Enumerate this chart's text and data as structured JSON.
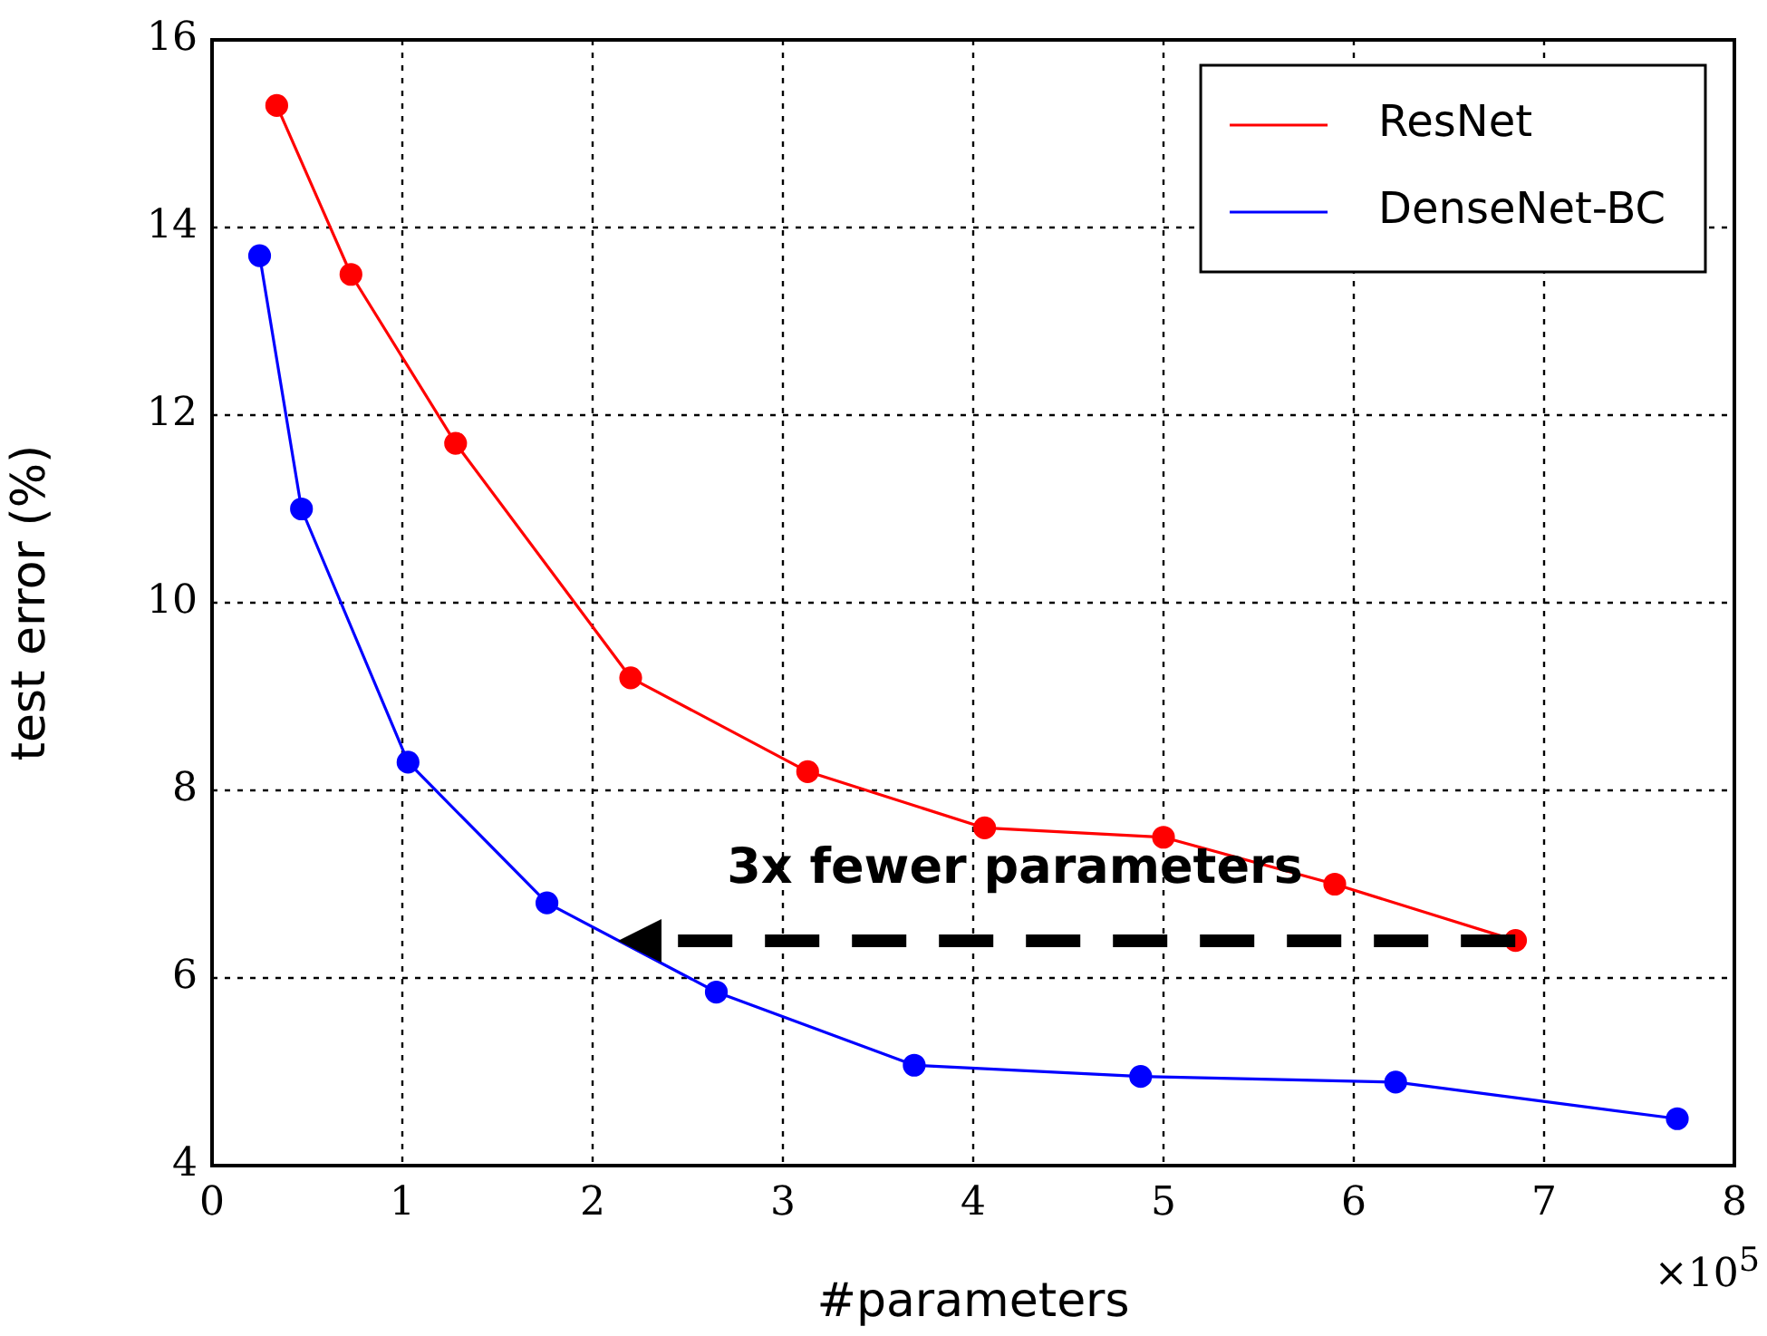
{
  "chart_data": {
    "type": "line",
    "xlabel": "#parameters",
    "ylabel": "test error (%)",
    "xlim": [
      0,
      8
    ],
    "xticks": [
      0,
      1,
      2,
      3,
      4,
      5,
      6,
      7,
      8
    ],
    "ylim": [
      4,
      16
    ],
    "yticks": [
      4,
      6,
      8,
      10,
      12,
      14,
      16
    ],
    "grid": true,
    "legend": "top right",
    "marker": "circle",
    "line_style": "solid",
    "series": [
      {
        "name": "ResNet",
        "color": "#ff0000",
        "x": [
          0.34,
          0.73,
          1.28,
          2.2,
          3.13,
          4.06,
          5.0,
          5.9,
          6.85
        ],
        "values": [
          15.3,
          13.5,
          11.7,
          9.2,
          8.2,
          7.6,
          7.5,
          7.0,
          6.4
        ]
      },
      {
        "name": "DenseNet-BC",
        "color": "#0000ff",
        "x": [
          0.25,
          0.47,
          1.03,
          1.76,
          2.65,
          3.69,
          4.88,
          6.22,
          7.7
        ],
        "values": [
          13.7,
          11.0,
          8.3,
          6.8,
          5.85,
          5.07,
          4.95,
          4.89,
          4.5
        ]
      }
    ],
    "annotations": [
      "3x fewer parameters",
      "×10$^{5}$"
    ]
  }
}
